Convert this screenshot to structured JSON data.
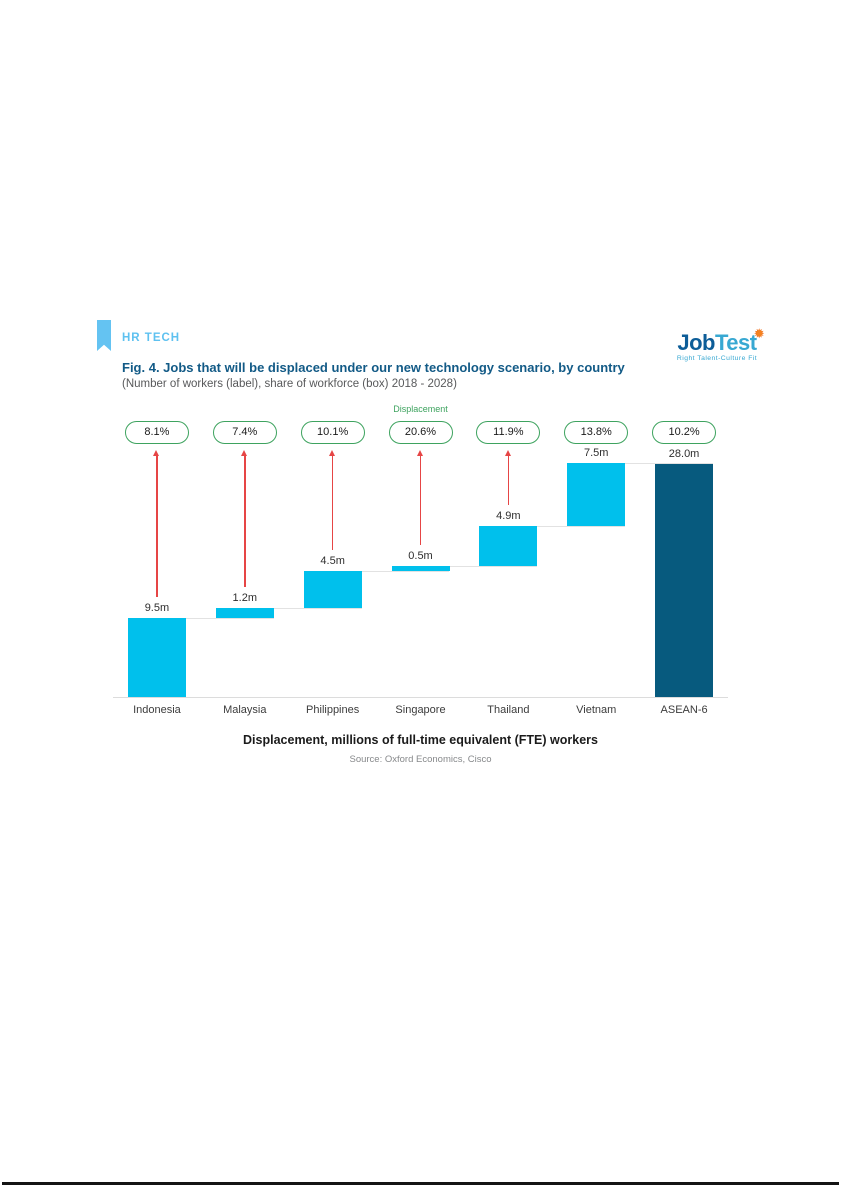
{
  "header": {
    "kicker": "HR TECH",
    "kicker_color": "#5ec1f0",
    "title": "Fig. 4. Jobs that will be displaced under our new technology scenario, by country",
    "subtitle": "(Number of workers (label), share of workforce (box) 2018 - 2028)",
    "title_color": "#125a86"
  },
  "logo": {
    "word_primary": "Job",
    "word_secondary": "Test",
    "star_icon": "✹",
    "tagline": "Right Talent-Culture Fit",
    "primary_color": "#0d5d98",
    "secondary_color": "#38a8d2",
    "star_color": "#f58220"
  },
  "chart_data": {
    "type": "bar",
    "subtype": "waterfall",
    "categories": [
      "Indonesia",
      "Malaysia",
      "Philippines",
      "Singapore",
      "Thailand",
      "Vietnam",
      "ASEAN-6"
    ],
    "values": [
      9.5,
      1.2,
      4.5,
      0.5,
      4.9,
      7.5,
      28.0
    ],
    "value_labels": [
      "9.5m",
      "1.2m",
      "4.5m",
      "0.5m",
      "4.9m",
      "7.5m",
      "28.0m"
    ],
    "share_of_workforce": [
      "8.1%",
      "7.4%",
      "10.1%",
      "20.6%",
      "11.9%",
      "13.8%",
      "10.2%"
    ],
    "is_total": [
      false,
      false,
      false,
      false,
      false,
      false,
      true
    ],
    "has_arrow": [
      true,
      true,
      true,
      true,
      true,
      false,
      false
    ],
    "displacement_label": "Displacement",
    "displacement_label_over": "Singapore",
    "xlabel": "Displacement, millions of full-time equivalent (FTE) workers",
    "source": "Source: Oxford Economics, Cisco",
    "ylim": [
      0,
      28.0
    ],
    "bar_color": "#00c0ec",
    "total_bar_color": "#075a7e",
    "oval_border_color": "#3ea35f",
    "arrow_color": "#e64545",
    "legend": "none",
    "grid": "off"
  }
}
